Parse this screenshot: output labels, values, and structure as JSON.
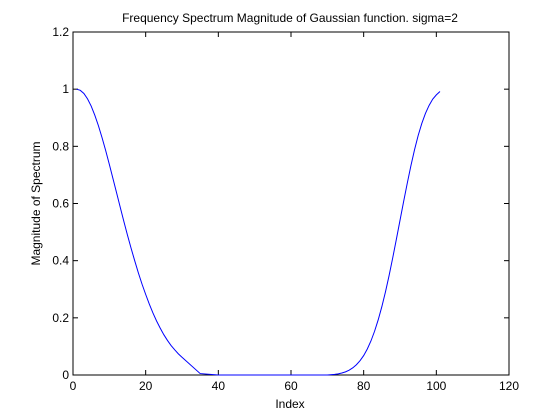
{
  "chart_data": {
    "type": "line",
    "title": "Frequency Spectrum Magnitude of Gaussian function. sigma=2",
    "xlabel": "Index",
    "ylabel": "Magnitude of Spectrum",
    "xlim": [
      0,
      120
    ],
    "ylim": [
      0,
      1.2
    ],
    "xticks": [
      0,
      20,
      40,
      60,
      80,
      100,
      120
    ],
    "yticks": [
      0,
      0.2,
      0.4,
      0.6,
      0.8,
      1,
      1.2
    ],
    "xtick_labels": [
      "0",
      "20",
      "40",
      "60",
      "80",
      "100",
      "120"
    ],
    "ytick_labels": [
      "0",
      "0.2",
      "0.4",
      "0.6",
      "0.8",
      "1",
      "1.2"
    ],
    "grid": false,
    "series": [
      {
        "color": "#0000ff",
        "x": [
          1,
          2,
          3,
          4,
          5,
          6,
          7,
          8,
          9,
          10,
          11,
          12,
          13,
          14,
          15,
          16,
          17,
          18,
          19,
          20,
          21,
          22,
          23,
          24,
          25,
          26,
          27,
          28,
          29,
          30,
          35,
          40,
          45,
          50,
          55,
          60,
          65,
          70,
          72,
          73,
          74,
          75,
          76,
          77,
          78,
          79,
          80,
          81,
          82,
          83,
          84,
          85,
          86,
          87,
          88,
          89,
          90,
          91,
          92,
          93,
          94,
          95,
          96,
          97,
          98,
          99,
          100,
          101
        ],
        "y": [
          1.0,
          0.996,
          0.985,
          0.966,
          0.941,
          0.909,
          0.872,
          0.83,
          0.785,
          0.737,
          0.687,
          0.637,
          0.587,
          0.537,
          0.489,
          0.443,
          0.399,
          0.357,
          0.318,
          0.282,
          0.248,
          0.217,
          0.189,
          0.164,
          0.141,
          0.121,
          0.103,
          0.088,
          0.074,
          0.062,
          0.005,
          0.0,
          0.0,
          0.0,
          0.0,
          0.0,
          0.0,
          0.0,
          0.002,
          0.004,
          0.007,
          0.011,
          0.017,
          0.025,
          0.036,
          0.05,
          0.068,
          0.091,
          0.119,
          0.153,
          0.193,
          0.239,
          0.291,
          0.348,
          0.41,
          0.475,
          0.541,
          0.607,
          0.671,
          0.732,
          0.788,
          0.838,
          0.88,
          0.915,
          0.943,
          0.965,
          0.98,
          0.992
        ]
      }
    ]
  }
}
